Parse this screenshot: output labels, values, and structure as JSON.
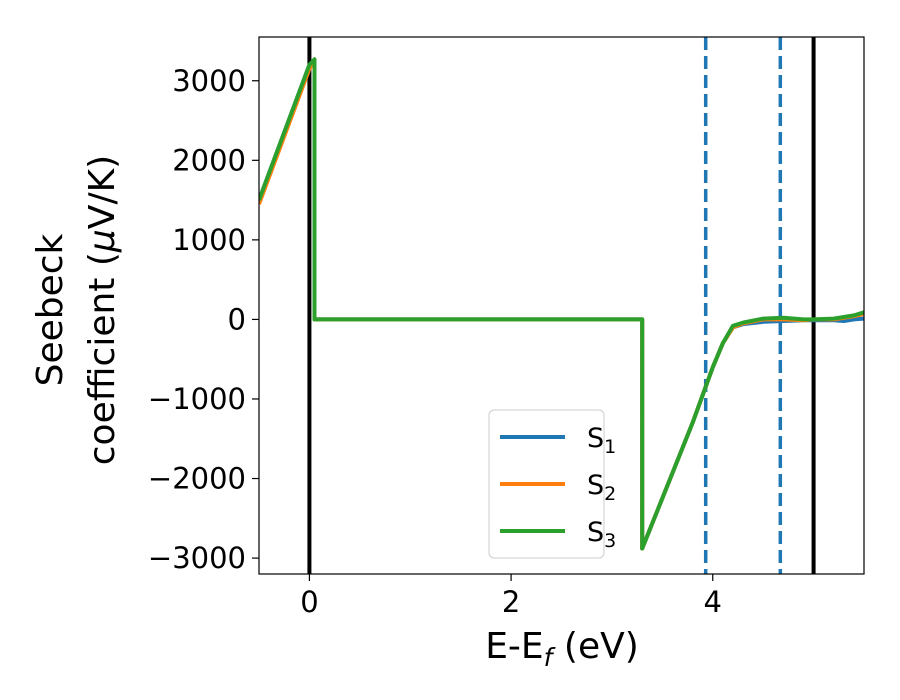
{
  "chart_data": {
    "type": "line",
    "xlabel": "E-E",
    "xlabel_sub": "f",
    "xlabel_unit": " (eV)",
    "ylabel_line1": "Seebeck",
    "ylabel_line2": "coefficient  (",
    "ylabel_mu": "μ",
    "ylabel_unit": "V/K)",
    "xlim": [
      -0.5,
      5.5
    ],
    "ylim": [
      -3200,
      3550
    ],
    "x_ticks": [
      0,
      2,
      4
    ],
    "x_tick_labels": [
      "0",
      "2",
      "4"
    ],
    "y_ticks": [
      3000,
      2000,
      1000,
      0,
      -1000,
      -2000,
      -3000
    ],
    "y_tick_labels": [
      "3000",
      "2000",
      "1000",
      "0",
      "−1000",
      "−2000",
      "−3000"
    ],
    "grid": false,
    "legend_position": "lower-right",
    "series": [
      {
        "name": "S",
        "sub": "1",
        "color": "#1f77b4",
        "x": [
          -0.5,
          -0.25,
          0.0,
          0.05,
          0.05,
          1.0,
          2.0,
          3.0,
          3.3,
          3.3,
          3.5,
          3.8,
          4.0,
          4.1,
          4.2,
          4.3,
          4.5,
          4.7,
          4.9,
          5.0,
          5.2,
          5.3,
          5.4,
          5.5
        ],
        "values": [
          1500,
          2350,
          3200,
          3250,
          0,
          0,
          0,
          0,
          0,
          -2880,
          -2250,
          -1300,
          -600,
          -300,
          -100,
          -60,
          -30,
          -20,
          -10,
          -10,
          -10,
          -20,
          0,
          10
        ]
      },
      {
        "name": "S",
        "sub": "2",
        "color": "#ff7f0e",
        "x": [
          -0.5,
          -0.25,
          0.0,
          0.05,
          0.05,
          1.0,
          2.0,
          3.0,
          3.3,
          3.3,
          3.5,
          3.8,
          4.0,
          4.1,
          4.2,
          4.3,
          4.5,
          4.7,
          4.9,
          5.0,
          5.2,
          5.3,
          5.4,
          5.5
        ],
        "values": [
          1450,
          2300,
          3150,
          3250,
          0,
          0,
          0,
          0,
          0,
          -2880,
          -2250,
          -1300,
          -600,
          -300,
          -100,
          -50,
          0,
          0,
          -10,
          0,
          0,
          20,
          40,
          70
        ]
      },
      {
        "name": "S",
        "sub": "3",
        "color": "#2ca02c",
        "x": [
          -0.5,
          -0.25,
          0.0,
          0.05,
          0.05,
          1.0,
          2.0,
          3.0,
          3.3,
          3.3,
          3.5,
          3.8,
          4.0,
          4.1,
          4.2,
          4.3,
          4.5,
          4.7,
          4.9,
          5.0,
          5.2,
          5.3,
          5.4,
          5.5
        ],
        "values": [
          1500,
          2350,
          3200,
          3270,
          0,
          0,
          0,
          0,
          0,
          -2880,
          -2250,
          -1300,
          -600,
          -300,
          -80,
          -40,
          10,
          20,
          0,
          0,
          10,
          30,
          50,
          90
        ]
      }
    ],
    "vlines": [
      {
        "x": 0.0,
        "style": "solid",
        "color": "#000000"
      },
      {
        "x": 5.0,
        "style": "solid",
        "color": "#000000"
      },
      {
        "x": 3.93,
        "style": "dashed",
        "color": "#1f77b4"
      },
      {
        "x": 4.67,
        "style": "dashed",
        "color": "#1f77b4"
      }
    ]
  }
}
